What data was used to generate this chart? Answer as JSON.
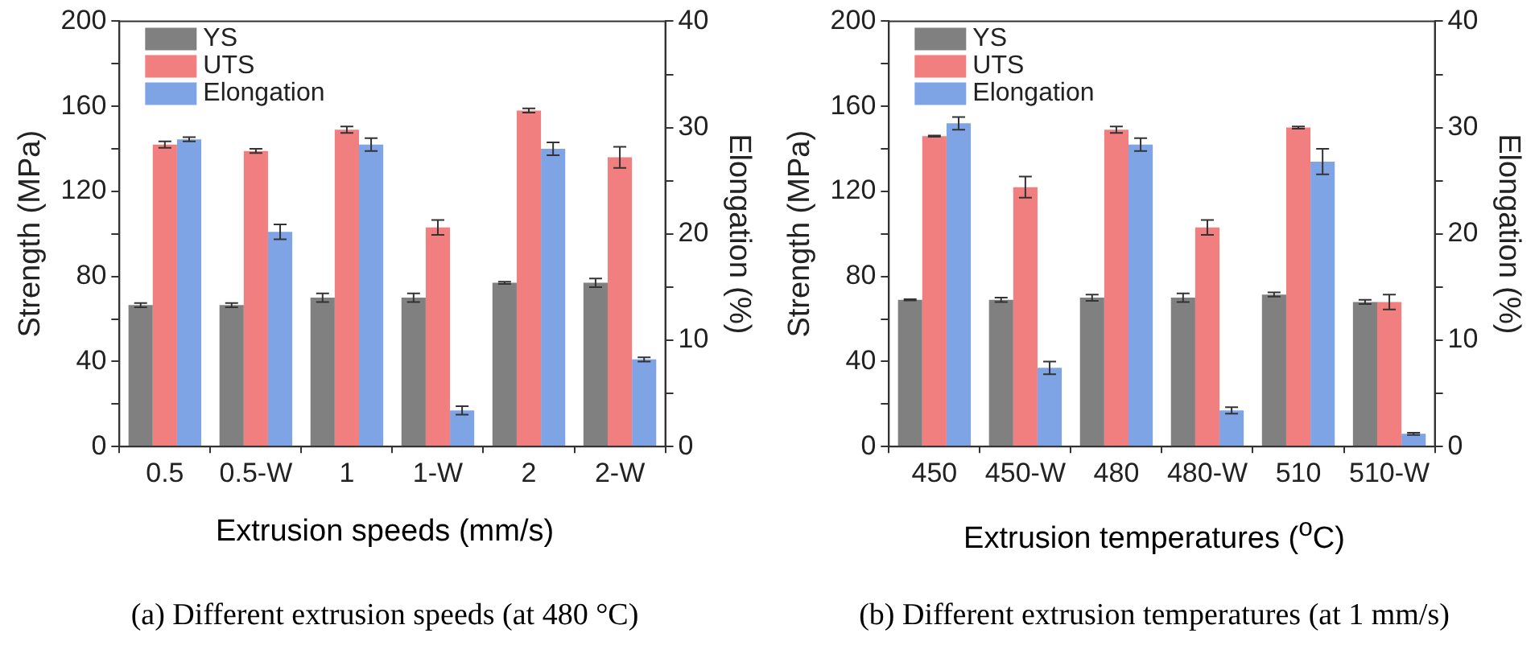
{
  "chart_data": [
    {
      "type": "bar",
      "categories": [
        "0.5",
        "0.5-W",
        "1",
        "1-W",
        "2",
        "2-W"
      ],
      "xlabel": "Extrusion speeds (mm/s)",
      "ylabel": "Strength (MPa)",
      "y2label": "Elongation (%)",
      "ylim": [
        0,
        200
      ],
      "yticks": [
        0,
        {
          "value": 20,
          "label": null
        },
        40,
        {
          "value": 60,
          "label": null
        },
        80,
        {
          "value": 100,
          "label": null
        },
        120,
        {
          "value": 140,
          "label": null
        },
        160,
        {
          "value": 180,
          "label": null
        },
        200
      ],
      "y2lim": [
        0,
        40
      ],
      "y2ticks": [
        0,
        {
          "value": 5,
          "label": null
        },
        10,
        {
          "value": 15,
          "label": null
        },
        20,
        {
          "value": 25,
          "label": null
        },
        30,
        {
          "value": 35,
          "label": null
        },
        40
      ],
      "grid": false,
      "legend": "top left",
      "series": [
        {
          "name": "YS",
          "color": "#808080",
          "values": [
            66.5,
            66.5,
            70,
            70,
            77,
            77
          ],
          "errors": [
            1,
            1,
            2,
            2,
            0.5,
            2
          ]
        },
        {
          "name": "UTS",
          "color": "#f27f7f",
          "values": [
            142,
            139,
            149,
            103,
            158,
            136
          ],
          "errors": [
            1.5,
            1,
            1.5,
            3.5,
            1,
            5
          ]
        },
        {
          "name": "Elongation",
          "color": "#7ea4e6",
          "axis": "y2",
          "values": [
            28.9,
            20.2,
            28.4,
            3.4,
            28,
            8.2
          ],
          "errors": [
            0.2,
            0.7,
            0.6,
            0.4,
            0.6,
            0.2
          ]
        }
      ],
      "annotations": [
        "(a) Different extrusion speeds (at 480 °C)"
      ]
    },
    {
      "type": "bar",
      "categories": [
        "450",
        "450-W",
        "480",
        "480-W",
        "510",
        "510-W"
      ],
      "xlabel": "Extrusion temperatures ($^{o}$C)",
      "ylabel": "Strength (MPa)",
      "y2label": "Elongation (%)",
      "ylim": [
        0,
        200
      ],
      "yticks": [
        0,
        {
          "value": 20,
          "label": null
        },
        40,
        {
          "value": 60,
          "label": null
        },
        80,
        {
          "value": 100,
          "label": null
        },
        120,
        {
          "value": 140,
          "label": null
        },
        160,
        {
          "value": 180,
          "label": null
        },
        200
      ],
      "y2lim": [
        0,
        40
      ],
      "y2ticks": [
        0,
        {
          "value": 5,
          "label": null
        },
        10,
        {
          "value": 15,
          "label": null
        },
        20,
        {
          "value": 25,
          "label": null
        },
        30,
        {
          "value": 35,
          "label": null
        },
        40
      ],
      "grid": false,
      "legend": "top left",
      "series": [
        {
          "name": "YS",
          "color": "#808080",
          "values": [
            69,
            69,
            70,
            70,
            71.5,
            68
          ],
          "errors": [
            0.3,
            1,
            1.5,
            2,
            1,
            1
          ]
        },
        {
          "name": "UTS",
          "color": "#f27f7f",
          "values": [
            146,
            122,
            149,
            103,
            150,
            68
          ],
          "errors": [
            0.3,
            5,
            1.5,
            3.5,
            0.5,
            3.5
          ]
        },
        {
          "name": "Elongation",
          "color": "#7ea4e6",
          "axis": "y2",
          "values": [
            30.4,
            7.4,
            28.4,
            3.4,
            26.8,
            1.2
          ],
          "errors": [
            0.6,
            0.6,
            0.6,
            0.3,
            1.2,
            0.1
          ]
        }
      ],
      "annotations": [
        "(b) Different extrusion temperatures (at 1 mm/s)"
      ]
    }
  ]
}
